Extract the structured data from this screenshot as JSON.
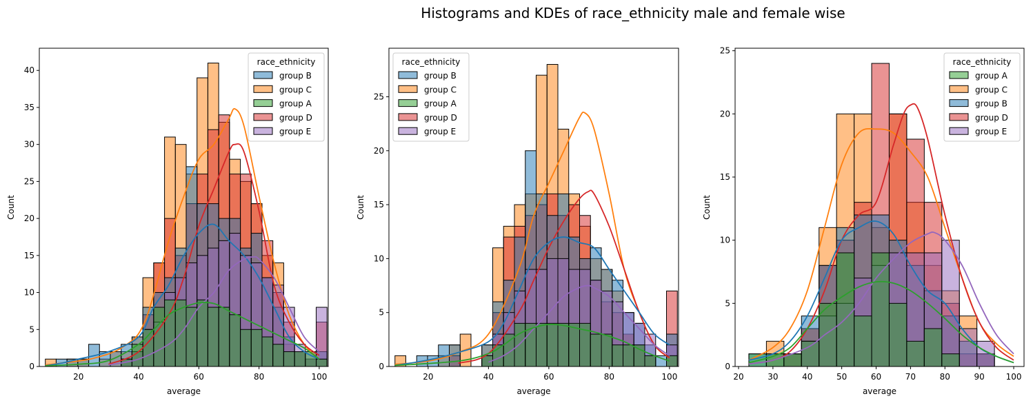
{
  "title": "Histograms and KDEs of race_ethnicity male and female wise",
  "colors": {
    "group A": "#2ca02c",
    "group B": "#1f77b4",
    "group C": "#ff7f0e",
    "group D": "#d62728",
    "group E": "#9467bd"
  },
  "chart_data": [
    {
      "type": "bar",
      "xlabel": "average",
      "ylabel": "Count",
      "xlim": [
        7,
        103
      ],
      "ylim": [
        0,
        43
      ],
      "xticks": [
        20,
        40,
        60,
        80,
        100
      ],
      "yticks": [
        0,
        5,
        10,
        15,
        20,
        25,
        30,
        35,
        40
      ],
      "legend_title": "race_ethnicity",
      "legend_position": "top-right",
      "legend_order": [
        "group B",
        "group C",
        "group A",
        "group D",
        "group E"
      ],
      "bin_start": 9,
      "bin_width": 3.6,
      "series": [
        {
          "name": "group C",
          "values": [
            1,
            0,
            1,
            1,
            0,
            1,
            2,
            2,
            4,
            12,
            14,
            31,
            30,
            26,
            39,
            41,
            33,
            28,
            25,
            22,
            15,
            14,
            3,
            2,
            1,
            1
          ]
        },
        {
          "name": "group D",
          "values": [
            0,
            0,
            0,
            0,
            0,
            0,
            0,
            1,
            2,
            7,
            14,
            20,
            15,
            22,
            26,
            32,
            34,
            26,
            26,
            22,
            17,
            10,
            6,
            2,
            1,
            6
          ]
        },
        {
          "name": "group B",
          "values": [
            0,
            1,
            1,
            1,
            3,
            2,
            2,
            3,
            4,
            8,
            10,
            12,
            16,
            27,
            22,
            22,
            20,
            20,
            16,
            18,
            12,
            8,
            4,
            2,
            1,
            2
          ]
        },
        {
          "name": "group E",
          "values": [
            0,
            0,
            0,
            0,
            0,
            0,
            0,
            1,
            2,
            5,
            6,
            10,
            12,
            14,
            15,
            16,
            17,
            18,
            15,
            14,
            12,
            11,
            8,
            3,
            2,
            8
          ]
        },
        {
          "name": "group A",
          "values": [
            0,
            0,
            0,
            0,
            0,
            0,
            0,
            1,
            3,
            5,
            8,
            9,
            9,
            8,
            9,
            8,
            8,
            7,
            5,
            5,
            4,
            3,
            2,
            2,
            2,
            1
          ]
        }
      ],
      "kde": [
        {
          "name": "group C",
          "x": [
            9,
            15,
            25,
            35,
            42,
            50,
            55,
            60,
            65,
            70,
            72,
            75,
            80,
            85,
            90,
            95,
            100
          ],
          "y": [
            0.2,
            0.5,
            1.1,
            2.7,
            6,
            17,
            23,
            28,
            30,
            33.5,
            34.8,
            32.5,
            23,
            14,
            7,
            3,
            1
          ]
        },
        {
          "name": "group D",
          "x": [
            30,
            40,
            50,
            55,
            60,
            65,
            70,
            72,
            75,
            80,
            85,
            90,
            95,
            100
          ],
          "y": [
            0.3,
            2,
            7,
            12,
            19,
            24,
            29,
            30,
            29,
            21,
            11,
            6,
            3,
            1.5
          ]
        },
        {
          "name": "group B",
          "x": [
            9,
            15,
            20,
            30,
            40,
            45,
            50,
            55,
            60,
            65,
            70,
            75,
            80,
            85,
            90,
            95,
            100
          ],
          "y": [
            0.1,
            0.5,
            1,
            2,
            4,
            8,
            11,
            15,
            18,
            19.2,
            17,
            15,
            12,
            8,
            4,
            2,
            1
          ]
        },
        {
          "name": "group E",
          "x": [
            30,
            40,
            50,
            55,
            60,
            65,
            70,
            75,
            78,
            80,
            85,
            90,
            95,
            100
          ],
          "y": [
            0.2,
            1,
            3,
            5,
            8,
            10,
            13,
            14.5,
            14.8,
            14.5,
            12,
            8,
            4,
            2
          ]
        },
        {
          "name": "group A",
          "x": [
            9,
            20,
            30,
            40,
            45,
            50,
            55,
            60,
            65,
            70,
            75,
            80,
            85,
            90,
            95,
            100
          ],
          "y": [
            0.1,
            0.3,
            0.8,
            3,
            5,
            7,
            8,
            8.6,
            8.5,
            7.5,
            6.5,
            5.5,
            4.5,
            3.5,
            2.5,
            1
          ]
        }
      ]
    },
    {
      "type": "bar",
      "xlabel": "average",
      "ylabel": "Count",
      "xlim": [
        7,
        103
      ],
      "ylim": [
        0,
        29.5
      ],
      "xticks": [
        20,
        40,
        60,
        80,
        100
      ],
      "yticks": [
        0,
        5,
        10,
        15,
        20,
        25
      ],
      "legend_title": "race_ethnicity",
      "legend_position": "top-left",
      "legend_order": [
        "group B",
        "group C",
        "group A",
        "group D",
        "group E"
      ],
      "bin_start": 9,
      "bin_width": 3.6,
      "series": [
        {
          "name": "group C",
          "values": [
            1,
            0,
            0,
            0,
            1,
            2,
            3,
            0,
            2,
            11,
            13,
            15,
            16,
            27,
            28,
            22,
            16,
            13,
            10,
            9,
            7,
            3,
            2,
            1,
            0,
            1
          ]
        },
        {
          "name": "group D",
          "values": [
            0,
            0,
            0,
            0,
            0,
            1,
            0,
            0,
            1,
            5,
            12,
            13,
            14,
            15,
            16,
            14,
            15,
            14,
            8,
            6,
            5,
            3,
            2,
            1,
            0,
            7
          ]
        },
        {
          "name": "group B",
          "values": [
            0,
            0,
            1,
            1,
            2,
            2,
            0,
            0,
            2,
            6,
            8,
            12,
            20,
            16,
            14,
            16,
            12,
            10,
            11,
            9,
            8,
            5,
            4,
            2,
            1,
            3
          ]
        },
        {
          "name": "group E",
          "values": [
            0,
            0,
            0,
            0,
            0,
            0,
            0,
            0,
            1,
            3,
            5,
            7,
            9,
            9,
            10,
            10,
            9,
            9,
            8,
            7,
            6,
            5,
            4,
            3,
            0,
            2
          ]
        },
        {
          "name": "group A",
          "values": [
            0,
            0,
            0,
            0,
            0,
            0,
            0,
            0,
            1,
            2,
            3,
            4,
            4,
            4,
            4,
            4,
            4,
            4,
            3,
            3,
            2,
            2,
            2,
            1,
            0,
            1
          ]
        }
      ],
      "kde": [
        {
          "name": "group C",
          "x": [
            9,
            20,
            30,
            40,
            50,
            55,
            60,
            65,
            70,
            72,
            75,
            80,
            85,
            90,
            95,
            100
          ],
          "y": [
            0.2,
            0.5,
            1.3,
            3,
            9,
            14,
            17,
            20,
            23,
            23.5,
            22,
            16,
            9,
            5,
            2,
            0.8
          ]
        },
        {
          "name": "group D",
          "x": [
            30,
            40,
            50,
            55,
            60,
            65,
            70,
            73,
            75,
            80,
            85,
            90,
            95,
            100
          ],
          "y": [
            0.3,
            1.2,
            5,
            8,
            11,
            13.5,
            15.5,
            16.2,
            16,
            13,
            9,
            5,
            2,
            0.8
          ]
        },
        {
          "name": "group B",
          "x": [
            9,
            20,
            30,
            40,
            45,
            50,
            55,
            60,
            65,
            70,
            75,
            80,
            85,
            90,
            95,
            100
          ],
          "y": [
            0.1,
            0.6,
            1.3,
            2.3,
            4,
            7,
            10,
            11.5,
            12,
            11.5,
            11,
            9,
            7,
            5,
            3,
            2
          ]
        },
        {
          "name": "group E",
          "x": [
            40,
            45,
            50,
            55,
            60,
            65,
            70,
            73,
            75,
            80,
            85,
            90,
            95,
            100
          ],
          "y": [
            0.4,
            1,
            2,
            3.5,
            5,
            6.5,
            7.3,
            7.5,
            7.3,
            6.5,
            5,
            3.5,
            2,
            1
          ]
        },
        {
          "name": "group A",
          "x": [
            9,
            30,
            40,
            45,
            50,
            55,
            60,
            65,
            70,
            75,
            80,
            85,
            90,
            95,
            100
          ],
          "y": [
            0.1,
            0.5,
            1.2,
            2,
            3,
            3.6,
            3.9,
            3.8,
            3.5,
            3.2,
            2.8,
            2.3,
            1.6,
            1,
            0.5
          ]
        }
      ]
    },
    {
      "type": "bar",
      "xlabel": "average",
      "ylabel": "Count",
      "xlim": [
        19,
        103
      ],
      "ylim": [
        0,
        25.2
      ],
      "xticks": [
        20,
        30,
        40,
        50,
        60,
        70,
        80,
        90,
        100
      ],
      "yticks": [
        0,
        5,
        10,
        15,
        20,
        25
      ],
      "legend_title": "race_ethnicity",
      "legend_position": "top-right",
      "legend_order": [
        "group A",
        "group C",
        "group B",
        "group D",
        "group E"
      ],
      "bin_start": 23,
      "bin_width": 5.1,
      "series": [
        {
          "name": "group C",
          "values": [
            0,
            2,
            1,
            3,
            11,
            20,
            20,
            11,
            20,
            13,
            8,
            6,
            4,
            1
          ]
        },
        {
          "name": "group D",
          "values": [
            0,
            0,
            1,
            3,
            8,
            10,
            13,
            24,
            20,
            18,
            13,
            5,
            1,
            1
          ]
        },
        {
          "name": "group B",
          "values": [
            1,
            1,
            1,
            4,
            8,
            11,
            12,
            12,
            10,
            8,
            6,
            4,
            2,
            1
          ]
        },
        {
          "name": "group E",
          "values": [
            0,
            0,
            0,
            2,
            4,
            5,
            7,
            8,
            9,
            9,
            9,
            10,
            3,
            2
          ]
        },
        {
          "name": "group A",
          "values": [
            1,
            1,
            1,
            2,
            5,
            9,
            4,
            9,
            5,
            2,
            3,
            1,
            0,
            0
          ]
        }
      ],
      "kde": [
        {
          "name": "group C",
          "x": [
            23,
            30,
            35,
            40,
            45,
            50,
            55,
            60,
            65,
            70,
            75,
            80,
            85,
            90,
            95,
            100
          ],
          "y": [
            0.5,
            1.5,
            3,
            6,
            11,
            16,
            18.5,
            18.8,
            18.5,
            17,
            15,
            11,
            7,
            3.5,
            1.8,
            0.8
          ]
        },
        {
          "name": "group D",
          "x": [
            23,
            30,
            35,
            40,
            45,
            50,
            55,
            60,
            65,
            68,
            70,
            72,
            75,
            80,
            85,
            90,
            95,
            100
          ],
          "y": [
            0.2,
            0.5,
            1.2,
            3,
            6,
            10,
            12,
            13,
            17.5,
            20,
            20.7,
            20.5,
            18,
            12,
            7,
            3.5,
            1.5,
            0.5
          ]
        },
        {
          "name": "group B",
          "x": [
            23,
            30,
            35,
            40,
            45,
            50,
            55,
            60,
            65,
            70,
            75,
            80,
            85,
            90,
            95,
            100
          ],
          "y": [
            0.5,
            1,
            2,
            4,
            7,
            10,
            11,
            11.5,
            10.5,
            8,
            6,
            5,
            3,
            1.5,
            0.8,
            0.3
          ]
        },
        {
          "name": "group E",
          "x": [
            23,
            30,
            40,
            45,
            50,
            55,
            60,
            65,
            70,
            75,
            77,
            80,
            85,
            90,
            95,
            100
          ],
          "y": [
            0.2,
            0.5,
            1.5,
            2.5,
            3.5,
            5,
            7,
            8.5,
            9.8,
            10.5,
            10.6,
            10,
            8,
            5,
            2.5,
            1
          ]
        },
        {
          "name": "group A",
          "x": [
            23,
            30,
            35,
            40,
            45,
            50,
            55,
            60,
            65,
            70,
            75,
            80,
            85,
            90,
            95,
            100
          ],
          "y": [
            0.3,
            0.8,
            1.5,
            3,
            4.5,
            5.5,
            6.3,
            6.7,
            6.6,
            6,
            5,
            3.8,
            2.5,
            1.5,
            0.8,
            0.3
          ]
        }
      ]
    }
  ]
}
